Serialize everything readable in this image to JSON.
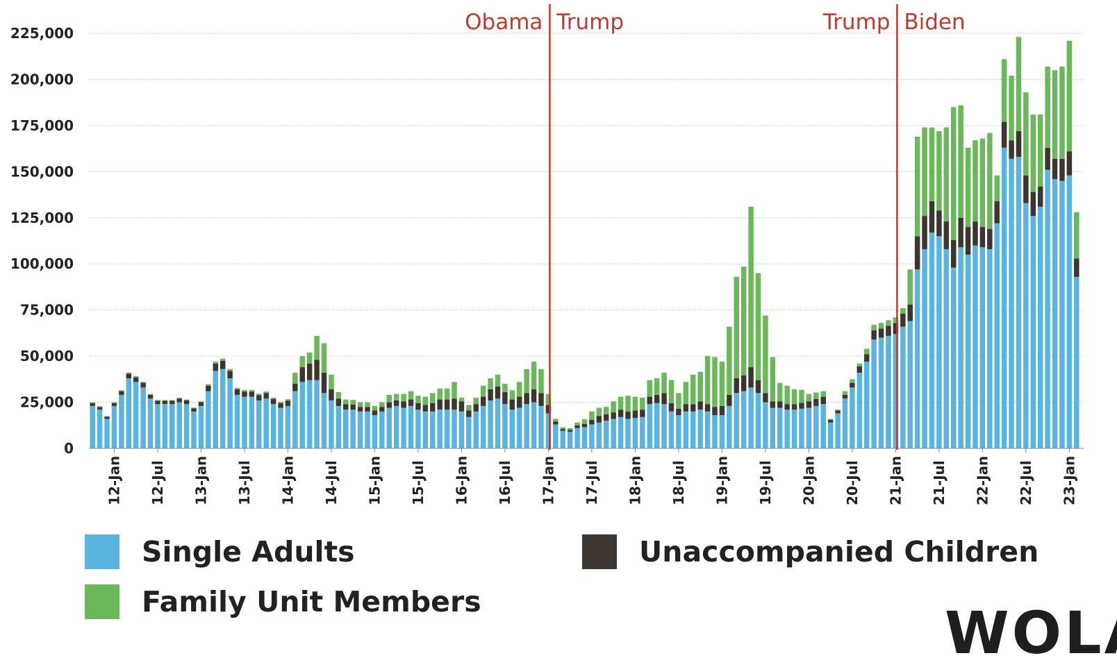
{
  "chart_data": {
    "type": "bar",
    "stacked": true,
    "title": "",
    "xlabel": "",
    "ylabel": "",
    "ylim": [
      0,
      230000
    ],
    "yticks": [
      0,
      25000,
      50000,
      75000,
      100000,
      125000,
      150000,
      175000,
      200000,
      225000
    ],
    "ytick_labels": [
      "0",
      "25,000",
      "50,000",
      "75,000",
      "100,000",
      "125,000",
      "150,000",
      "175,000",
      "200,000",
      "225,000"
    ],
    "x_start": "2011-10",
    "x_ticks": [
      {
        "label": "12-Jan",
        "index": 3
      },
      {
        "label": "12-Jul",
        "index": 9
      },
      {
        "label": "13-Jan",
        "index": 15
      },
      {
        "label": "13-Jul",
        "index": 21
      },
      {
        "label": "14-Jan",
        "index": 27
      },
      {
        "label": "14-Jul",
        "index": 33
      },
      {
        "label": "15-Jan",
        "index": 39
      },
      {
        "label": "15-Jul",
        "index": 45
      },
      {
        "label": "16-Jan",
        "index": 51
      },
      {
        "label": "16-Jul",
        "index": 57
      },
      {
        "label": "17-Jan",
        "index": 63
      },
      {
        "label": "17-Jul",
        "index": 69
      },
      {
        "label": "18-Jan",
        "index": 75
      },
      {
        "label": "18-Jul",
        "index": 81
      },
      {
        "label": "19-Jan",
        "index": 87
      },
      {
        "label": "19-Jul",
        "index": 93
      },
      {
        "label": "20-Jan",
        "index": 99
      },
      {
        "label": "20-Jul",
        "index": 105
      },
      {
        "label": "21-Jan",
        "index": 111
      },
      {
        "label": "21-Jul",
        "index": 117
      },
      {
        "label": "22-Jan",
        "index": 123
      },
      {
        "label": "22-Jul",
        "index": 129
      },
      {
        "label": "23-Jan",
        "index": 135
      }
    ],
    "annotations": [
      {
        "before": "Obama",
        "after": "Trump",
        "boundary": "17-Jan"
      },
      {
        "before": "Trump",
        "after": "Biden",
        "boundary": "21-Jan"
      }
    ],
    "series": [
      {
        "name": "Single Adults",
        "color": "#5ab4e0",
        "values": [
          23000,
          21000,
          16000,
          23000,
          29000,
          38000,
          36000,
          33000,
          27000,
          24000,
          24000,
          24000,
          25000,
          24000,
          20000,
          23000,
          31000,
          42000,
          43000,
          38000,
          29000,
          28000,
          28000,
          26000,
          27000,
          24000,
          22000,
          23000,
          31000,
          36000,
          37000,
          37000,
          30000,
          26000,
          23000,
          21000,
          21000,
          20000,
          20000,
          18000,
          20000,
          22000,
          23000,
          22000,
          23000,
          21000,
          20000,
          20000,
          21000,
          21000,
          21000,
          20000,
          17000,
          20000,
          23000,
          26000,
          27000,
          24000,
          21000,
          22000,
          24000,
          25000,
          23000,
          19000,
          13000,
          9500,
          9000,
          11000,
          11500,
          13000,
          14000,
          15000,
          16000,
          17000,
          16000,
          16500,
          17000,
          24000,
          24500,
          24000,
          20000,
          18000,
          20000,
          20000,
          21000,
          20000,
          18000,
          18000,
          23000,
          30000,
          31000,
          33000,
          30000,
          25000,
          22000,
          22000,
          21000,
          21000,
          21500,
          22000,
          23000,
          24000,
          14000,
          19000,
          27000,
          33000,
          41000,
          47000,
          59000,
          60000,
          61000,
          62000,
          66000,
          69000,
          97000,
          108000,
          117000,
          115000,
          108000,
          98000,
          109000,
          105000,
          110000,
          109000,
          108000,
          122000,
          163000,
          157000,
          158000,
          133000,
          126000,
          131000,
          151000,
          146000,
          145000,
          148000,
          93000
        ]
      },
      {
        "name": "Unaccompanied Children",
        "color": "#3d3630",
        "values": [
          1500,
          1400,
          1200,
          1500,
          2000,
          2500,
          2500,
          2500,
          2000,
          1800,
          1800,
          1800,
          2000,
          2000,
          1700,
          2000,
          3000,
          4000,
          4500,
          4000,
          3000,
          2800,
          2800,
          2800,
          3000,
          2800,
          2500,
          2800,
          4000,
          8000,
          9000,
          11000,
          11000,
          6000,
          4000,
          3000,
          2800,
          2500,
          2500,
          2500,
          2500,
          3000,
          3000,
          3500,
          3500,
          3500,
          3500,
          4500,
          5500,
          5500,
          6000,
          5500,
          3500,
          4000,
          5000,
          6000,
          6500,
          6500,
          5500,
          6000,
          6000,
          7000,
          7000,
          4500,
          1500,
          1000,
          1000,
          1500,
          1800,
          2500,
          3500,
          3500,
          3500,
          4000,
          4000,
          4000,
          4000,
          4000,
          4500,
          6000,
          4500,
          3500,
          4000,
          4000,
          4500,
          4000,
          4500,
          5000,
          6000,
          8000,
          8500,
          11000,
          7000,
          5000,
          3500,
          3500,
          3000,
          3000,
          3200,
          3500,
          3800,
          4000,
          1500,
          1500,
          2000,
          2500,
          3500,
          4000,
          5000,
          5000,
          5500,
          6000,
          7000,
          9000,
          18000,
          18000,
          17000,
          14000,
          15000,
          15000,
          16000,
          15000,
          13000,
          11000,
          11000,
          12000,
          14000,
          10000,
          14000,
          15000,
          13000,
          11000,
          12000,
          11000,
          12000,
          13000,
          10000
        ]
      },
      {
        "name": "Family Unit Members",
        "color": "#6ab85a",
        "values": [
          500,
          400,
          300,
          500,
          500,
          600,
          600,
          600,
          500,
          400,
          400,
          400,
          500,
          500,
          400,
          500,
          800,
          1000,
          1200,
          1000,
          800,
          800,
          800,
          800,
          800,
          700,
          700,
          800,
          6000,
          6000,
          6000,
          13000,
          16000,
          8000,
          3500,
          2500,
          2500,
          2500,
          2500,
          2500,
          2500,
          4000,
          3500,
          4000,
          4500,
          4000,
          4500,
          5500,
          6000,
          6000,
          9000,
          2000,
          3000,
          3500,
          6000,
          6000,
          6500,
          4500,
          5000,
          8000,
          13000,
          15000,
          13000,
          6000,
          1500,
          1000,
          1000,
          1500,
          2500,
          4500,
          4500,
          4000,
          6000,
          7000,
          8500,
          7500,
          6500,
          9000,
          9000,
          11000,
          12500,
          8500,
          12000,
          16000,
          16000,
          26000,
          27000,
          24000,
          37000,
          55000,
          59000,
          87000,
          58000,
          42000,
          24000,
          10000,
          10000,
          8000,
          7000,
          4000,
          3500,
          3000,
          500,
          500,
          2000,
          2000,
          1500,
          3000,
          3000,
          3000,
          3000,
          3000,
          3000,
          19000,
          54000,
          48000,
          40000,
          43000,
          51000,
          72000,
          61000,
          43000,
          44000,
          48000,
          52000,
          14000,
          34000,
          35000,
          51000,
          45000,
          42000,
          39000,
          44000,
          48000,
          50000,
          60000,
          25000
        ]
      }
    ],
    "legend": {
      "placement": "bottom",
      "items": [
        {
          "name": "Single Adults",
          "color": "#5ab4e0"
        },
        {
          "name": "Unaccompanied Children",
          "color": "#3d3630"
        },
        {
          "name": "Family Unit Members",
          "color": "#6ab85a"
        }
      ]
    },
    "grid": true,
    "annotation_color": "#c0392b"
  },
  "logo": {
    "text": "WOLA"
  }
}
